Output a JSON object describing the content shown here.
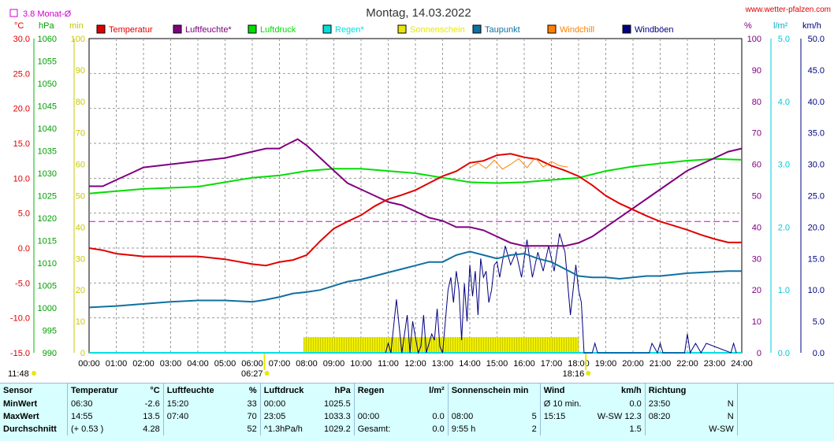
{
  "header": {
    "title": "Montag, 14.03.2022",
    "site": "www.wetter-pfalzen.com",
    "avg_label": "3.8 Monat-Ø"
  },
  "axes": {
    "temp_unit": "°C",
    "pressure_unit": "hPa",
    "sun_unit": "min",
    "humidity_unit": "%",
    "rain_unit": "l/m²",
    "wind_unit": "km/h",
    "temp_ticks": [
      "30.0",
      "25.0",
      "20.0",
      "15.0",
      "10.0",
      "5.0",
      "0.0",
      "-5.0",
      "-10.0",
      "-15.0"
    ],
    "pressure_ticks": [
      "1060",
      "1055",
      "1050",
      "1045",
      "1040",
      "1035",
      "1030",
      "1025",
      "1020",
      "1015",
      "1010",
      "1005",
      "1000",
      "995",
      "990"
    ],
    "sun_ticks": [
      "100",
      "90",
      "80",
      "70",
      "60",
      "50",
      "40",
      "30",
      "20",
      "10",
      "0"
    ],
    "humidity_ticks": [
      "100",
      "90",
      "80",
      "70",
      "60",
      "50",
      "40",
      "30",
      "20",
      "10",
      "0"
    ],
    "rain_ticks": [
      "5.0",
      "4.0",
      "3.0",
      "2.0",
      "1.0",
      "0.0"
    ],
    "wind_ticks": [
      "50.0",
      "45.0",
      "40.0",
      "35.0",
      "30.0",
      "25.0",
      "20.0",
      "15.0",
      "10.0",
      "5.0",
      "0.0"
    ],
    "time_ticks": [
      "00:00",
      "01:00",
      "02:00",
      "03:00",
      "04:00",
      "05:00",
      "06:00",
      "07:00",
      "08:00",
      "09:00",
      "10:00",
      "11:00",
      "12:00",
      "13:00",
      "14:00",
      "15:00",
      "16:00",
      "17:00",
      "18:00",
      "19:00",
      "20:00",
      "21:00",
      "22:00",
      "23:00",
      "24:00"
    ],
    "sunrise": "06:27",
    "sunset": "18:16",
    "corner_time": "11:48"
  },
  "legend": [
    {
      "label": "Temperatur",
      "color": "#e00000"
    },
    {
      "label": "Luftfeuchte*",
      "color": "#800080"
    },
    {
      "label": "Luftdruck",
      "color": "#00dd00"
    },
    {
      "label": "Regen*",
      "color": "#00e0e0"
    },
    {
      "label": "Sonnenschein",
      "color": "#e8e800"
    },
    {
      "label": "Taupunkt",
      "color": "#1070a0"
    },
    {
      "label": "Windchill",
      "color": "#ff8000"
    },
    {
      "label": "Windböen",
      "color": "#000080"
    }
  ],
  "chart_data": {
    "type": "line",
    "title": "Montag, 14.03.2022",
    "x_unit": "hour of day",
    "xlim": [
      0,
      24
    ],
    "monthly_average_temperature": 3.8,
    "series": [
      {
        "name": "Temperatur",
        "unit": "°C",
        "color": "#e00000",
        "x": [
          0,
          0.5,
          1,
          1.5,
          2,
          3,
          4,
          5,
          6,
          6.5,
          7,
          7.5,
          8,
          8.5,
          9,
          9.5,
          10,
          10.5,
          11,
          11.5,
          12,
          12.5,
          13,
          13.5,
          14,
          14.5,
          15,
          15.5,
          16,
          16.5,
          17,
          17.5,
          18,
          18.5,
          19,
          19.5,
          20,
          20.5,
          21,
          21.5,
          22,
          22.5,
          23,
          23.5,
          24
        ],
        "y": [
          0.0,
          -0.3,
          -0.8,
          -1.0,
          -1.2,
          -1.2,
          -1.2,
          -1.6,
          -2.3,
          -2.5,
          -2.0,
          -1.7,
          -1.0,
          1.0,
          2.8,
          3.8,
          4.7,
          6.0,
          7.0,
          7.6,
          8.3,
          9.3,
          10.3,
          11.0,
          12.2,
          12.5,
          13.3,
          13.5,
          13.0,
          12.7,
          11.8,
          11.1,
          10.3,
          9.0,
          7.5,
          6.4,
          5.5,
          4.6,
          3.8,
          3.2,
          2.6,
          1.9,
          1.3,
          0.8,
          0.8
        ]
      },
      {
        "name": "Luftfeuchte*",
        "unit": "%",
        "color": "#800080",
        "x": [
          0,
          0.5,
          1,
          1.5,
          2,
          3,
          4,
          5,
          5.5,
          6,
          6.5,
          7,
          7.2,
          7.67,
          8,
          8.5,
          9,
          9.5,
          10,
          10.5,
          11,
          11.5,
          12,
          12.5,
          13,
          13.5,
          14,
          14.5,
          15,
          15.5,
          16,
          16.5,
          17,
          17.5,
          18,
          18.5,
          19,
          19.5,
          20,
          20.5,
          21,
          21.5,
          22,
          22.5,
          23,
          23.5,
          24
        ],
        "y": [
          53,
          53,
          55,
          57,
          59,
          60,
          61,
          62,
          63,
          64,
          65,
          65,
          66,
          68,
          66,
          62,
          58,
          54,
          52,
          50,
          48,
          47,
          45,
          43,
          42,
          40,
          40,
          39,
          37,
          35,
          34,
          34,
          34,
          34,
          35,
          37,
          40,
          43,
          46,
          49,
          52,
          55,
          58,
          60,
          62,
          64,
          65
        ]
      },
      {
        "name": "Luftdruck",
        "unit": "hPa",
        "color": "#00dd00",
        "x": [
          0,
          2,
          4,
          5,
          6,
          7,
          8,
          9,
          10,
          11,
          12,
          13,
          14,
          15,
          16,
          17,
          18,
          19,
          20,
          21,
          22,
          23,
          24
        ],
        "y": [
          1025.5,
          1026.5,
          1027.0,
          1028.0,
          1029.0,
          1029.5,
          1030.5,
          1031.0,
          1031.0,
          1030.5,
          1030.0,
          1029.0,
          1028.0,
          1027.8,
          1028.0,
          1028.5,
          1029.0,
          1030.5,
          1031.5,
          1032.2,
          1032.8,
          1033.2,
          1033.0
        ]
      },
      {
        "name": "Regen*",
        "unit": "l/m²",
        "color": "#00e0e0",
        "x": [
          0,
          24
        ],
        "y": [
          0.0,
          0.0
        ]
      },
      {
        "name": "Sonnenschein",
        "unit": "min",
        "color": "#e8e800",
        "x": [
          7.9,
          18.0
        ],
        "y": [
          5,
          5
        ]
      },
      {
        "name": "Taupunkt",
        "unit": "°C",
        "color": "#1070a0",
        "x": [
          0,
          1,
          2,
          3,
          4,
          5,
          6,
          6.5,
          7,
          7.5,
          8,
          8.5,
          9,
          9.5,
          10,
          10.5,
          11,
          11.5,
          12,
          12.5,
          13,
          13.5,
          14,
          14.5,
          15,
          15.5,
          16,
          16.5,
          17,
          17.5,
          18,
          18.5,
          19,
          19.5,
          20,
          20.5,
          21,
          21.5,
          22,
          22.5,
          23,
          23.5,
          24
        ],
        "y": [
          -8.5,
          -8.3,
          -8.0,
          -7.7,
          -7.5,
          -7.5,
          -7.7,
          -7.4,
          -7.0,
          -6.5,
          -6.3,
          -6.0,
          -5.4,
          -4.8,
          -4.5,
          -4.0,
          -3.5,
          -3.0,
          -2.5,
          -2.0,
          -2.0,
          -1.0,
          -0.5,
          -1.0,
          -1.5,
          -1.0,
          -0.8,
          -1.5,
          -2.0,
          -3.0,
          -4.0,
          -4.2,
          -4.2,
          -4.4,
          -4.2,
          -4.0,
          -4.0,
          -3.8,
          -3.6,
          -3.5,
          -3.4,
          -3.3,
          -3.3
        ]
      },
      {
        "name": "Windchill",
        "unit": "°C",
        "color": "#ff8000",
        "x": [
          14,
          14.3,
          14.6,
          14.9,
          15.2,
          15.5,
          15.8,
          16.1,
          16.4,
          16.7,
          17,
          17.3,
          17.6
        ],
        "y": [
          11.5,
          12.2,
          11.4,
          12.6,
          11.3,
          12.0,
          12.8,
          11.5,
          12.9,
          11.6,
          12.4,
          11.8,
          11.6
        ]
      },
      {
        "name": "Windböen",
        "unit": "km/h",
        "color": "#000080",
        "x": [
          10.9,
          11.0,
          11.1,
          11.3,
          11.5,
          11.6,
          11.7,
          11.8,
          11.9,
          12.1,
          12.2,
          12.3,
          12.4,
          12.6,
          12.7,
          12.8,
          12.9,
          13.0,
          13.2,
          13.3,
          13.4,
          13.5,
          13.6,
          13.7,
          13.8,
          13.9,
          14.0,
          14.1,
          14.2,
          14.3,
          14.4,
          14.5,
          14.6,
          14.7,
          14.8,
          14.9,
          15.0,
          15.1,
          15.3,
          15.5,
          15.7,
          15.9,
          16.1,
          16.3,
          16.5,
          16.7,
          16.9,
          17.1,
          17.3,
          17.5,
          17.7,
          17.9,
          18.0,
          18.1,
          18.2,
          18.5,
          18.6,
          18.7,
          20.6,
          20.7,
          20.9,
          21.0,
          21.1,
          21.9,
          22.0,
          22.1,
          22.3,
          22.5,
          22.7,
          23.6,
          23.7,
          23.8
        ],
        "y": [
          0,
          1.5,
          0,
          8.5,
          0,
          3,
          6,
          0,
          5,
          0,
          1,
          6,
          0,
          3,
          2,
          7,
          1,
          0,
          10,
          12,
          8,
          13,
          10,
          2,
          11,
          5,
          14,
          9,
          13,
          6,
          15,
          12,
          13,
          8,
          10,
          14,
          14.5,
          12,
          17,
          14,
          16,
          12,
          18,
          12,
          16,
          13,
          17,
          13,
          19,
          16,
          6,
          14,
          10,
          8,
          0,
          0,
          1.5,
          0,
          0,
          1.5,
          0,
          1.5,
          0,
          0,
          3,
          0,
          1.5,
          0,
          1.5,
          0,
          1.5,
          0
        ]
      }
    ],
    "markers": {
      "sunrise": "06:27",
      "sunset": "18:16"
    }
  },
  "stats": {
    "headers": [
      "Sensor",
      "Temperatur",
      "°C",
      "Luftfeuchte",
      "%",
      "Luftdruck",
      "hPa",
      "Regen",
      "l/m²",
      "Sonnenschein min",
      "Wind",
      "km/h",
      "Richtung"
    ],
    "rows": [
      {
        "sensor": "MinWert",
        "temp_time": "06:30",
        "temp_val": "-2.6",
        "hum_time": "15:20",
        "hum_val": "33",
        "press_time": "00:00",
        "press_val": "1025.5",
        "rain_time": "",
        "rain_val": "",
        "sun_time": "",
        "sun_val": "",
        "wind_time": "Ø 10 min.",
        "wind_val": "0.0",
        "dir_time": "23:50",
        "dir_val": "N"
      },
      {
        "sensor": "MaxWert",
        "temp_time": "14:55",
        "temp_val": "13.5",
        "hum_time": "07:40",
        "hum_val": "70",
        "press_time": "23:05",
        "press_val": "1033.3",
        "rain_time": "00:00",
        "rain_val": "0.0",
        "sun_time": "08:00",
        "sun_val": "5",
        "wind_time": "15:15",
        "wind_val": "W-SW 12.3",
        "dir_time": "08:20",
        "dir_val": "N"
      },
      {
        "sensor": "Durchschnitt",
        "temp_time": "(+ 0.53 )",
        "temp_val": "4.28",
        "hum_time": "",
        "hum_val": "52",
        "press_time": "^1.3hPa/h",
        "press_val": "1029.2",
        "rain_time": "Gesamt:",
        "rain_val": "0.0",
        "sun_time": "9:55 h",
        "sun_val": "2",
        "wind_time": "",
        "wind_val": "1.5",
        "dir_time": "",
        "dir_val": "W-SW"
      }
    ]
  }
}
